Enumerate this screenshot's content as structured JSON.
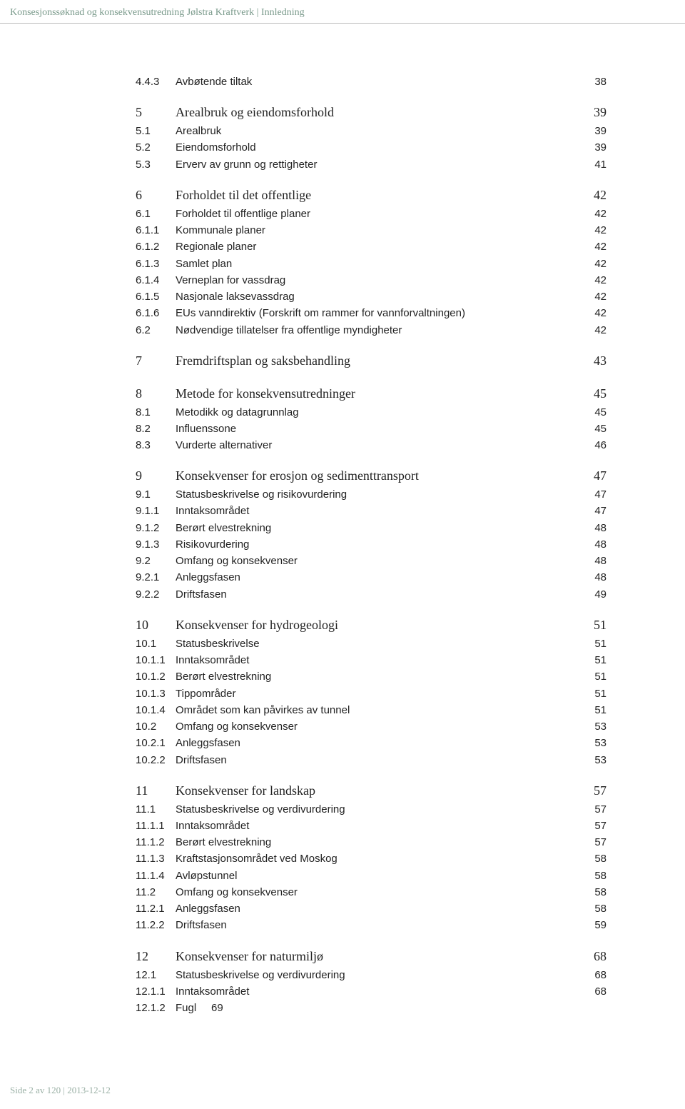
{
  "header": {
    "title_left": "Konsesjonssøknad og konsekvensutredning Jølstra Kraftverk",
    "separator": "|",
    "title_right": "Innledning"
  },
  "colors": {
    "header_text": "#7a9a8b",
    "rule": "#bbbbbb",
    "body_text": "#222222",
    "footer_text": "#9ab0a5",
    "background": "#ffffff"
  },
  "toc": [
    {
      "level": 2,
      "num": "4.4.3",
      "title": "Avbøtende tiltak",
      "page": "38"
    },
    {
      "level": 1,
      "num": "5",
      "title": "Arealbruk og eiendomsforhold",
      "page": "39"
    },
    {
      "level": 2,
      "num": "5.1",
      "title": "Arealbruk",
      "page": "39"
    },
    {
      "level": 2,
      "num": "5.2",
      "title": "Eiendomsforhold",
      "page": "39"
    },
    {
      "level": 2,
      "num": "5.3",
      "title": "Erverv av grunn og rettigheter",
      "page": "41"
    },
    {
      "level": 1,
      "num": "6",
      "title": "Forholdet til det offentlige",
      "page": "42"
    },
    {
      "level": 2,
      "num": "6.1",
      "title": "Forholdet til offentlige planer",
      "page": "42"
    },
    {
      "level": 2,
      "num": "6.1.1",
      "title": "Kommunale planer",
      "page": "42"
    },
    {
      "level": 2,
      "num": "6.1.2",
      "title": "Regionale planer",
      "page": "42"
    },
    {
      "level": 2,
      "num": "6.1.3",
      "title": "Samlet plan",
      "page": "42"
    },
    {
      "level": 2,
      "num": "6.1.4",
      "title": "Verneplan for vassdrag",
      "page": "42"
    },
    {
      "level": 2,
      "num": "6.1.5",
      "title": "Nasjonale laksevassdrag",
      "page": "42"
    },
    {
      "level": 2,
      "num": "6.1.6",
      "title": "EUs vanndirektiv (Forskrift om rammer for vannforvaltningen)",
      "page": "42"
    },
    {
      "level": 2,
      "num": "6.2",
      "title": "Nødvendige tillatelser fra offentlige myndigheter",
      "page": "42"
    },
    {
      "level": 1,
      "num": "7",
      "title": "Fremdriftsplan og saksbehandling",
      "page": "43"
    },
    {
      "level": 1,
      "num": "8",
      "title": "Metode for konsekvensutredninger",
      "page": "45"
    },
    {
      "level": 2,
      "num": "8.1",
      "title": "Metodikk og datagrunnlag",
      "page": "45"
    },
    {
      "level": 2,
      "num": "8.2",
      "title": "Influenssone",
      "page": "45"
    },
    {
      "level": 2,
      "num": "8.3",
      "title": "Vurderte alternativer",
      "page": "46"
    },
    {
      "level": 1,
      "num": "9",
      "title": "Konsekvenser for erosjon og sedimenttransport",
      "page": "47"
    },
    {
      "level": 2,
      "num": "9.1",
      "title": "Statusbeskrivelse og risikovurdering",
      "page": "47"
    },
    {
      "level": 2,
      "num": "9.1.1",
      "title": "Inntaksområdet",
      "page": "47"
    },
    {
      "level": 2,
      "num": "9.1.2",
      "title": "Berørt elvestrekning",
      "page": "48"
    },
    {
      "level": 2,
      "num": "9.1.3",
      "title": "Risikovurdering",
      "page": "48"
    },
    {
      "level": 2,
      "num": "9.2",
      "title": "Omfang og konsekvenser",
      "page": "48"
    },
    {
      "level": 2,
      "num": "9.2.1",
      "title": "Anleggsfasen",
      "page": "48"
    },
    {
      "level": 2,
      "num": "9.2.2",
      "title": "Driftsfasen",
      "page": "49"
    },
    {
      "level": 1,
      "num": "10",
      "title": "Konsekvenser for hydrogeologi",
      "page": "51"
    },
    {
      "level": 2,
      "num": "10.1",
      "title": "Statusbeskrivelse",
      "page": "51"
    },
    {
      "level": 2,
      "num": "10.1.1",
      "title": "Inntaksområdet",
      "page": "51"
    },
    {
      "level": 2,
      "num": "10.1.2",
      "title": "Berørt elvestrekning",
      "page": "51"
    },
    {
      "level": 2,
      "num": "10.1.3",
      "title": "Tippområder",
      "page": "51"
    },
    {
      "level": 2,
      "num": "10.1.4",
      "title": "Området som kan påvirkes av tunnel",
      "page": "51"
    },
    {
      "level": 2,
      "num": "10.2",
      "title": "Omfang og konsekvenser",
      "page": "53"
    },
    {
      "level": 2,
      "num": "10.2.1",
      "title": "Anleggsfasen",
      "page": "53"
    },
    {
      "level": 2,
      "num": "10.2.2",
      "title": "Driftsfasen",
      "page": "53"
    },
    {
      "level": 1,
      "num": "11",
      "title": "Konsekvenser for landskap",
      "page": "57"
    },
    {
      "level": 2,
      "num": "11.1",
      "title": "Statusbeskrivelse og verdivurdering",
      "page": "57"
    },
    {
      "level": 2,
      "num": "11.1.1",
      "title": "Inntaksområdet",
      "page": "57"
    },
    {
      "level": 2,
      "num": "11.1.2",
      "title": "Berørt elvestrekning",
      "page": "57"
    },
    {
      "level": 2,
      "num": "11.1.3",
      "title": "Kraftstasjonsområdet ved Moskog",
      "page": "58"
    },
    {
      "level": 2,
      "num": "11.1.4",
      "title": "Avløpstunnel",
      "page": "58"
    },
    {
      "level": 2,
      "num": "11.2",
      "title": "Omfang og konsekvenser",
      "page": "58"
    },
    {
      "level": 2,
      "num": "11.2.1",
      "title": "Anleggsfasen",
      "page": "58"
    },
    {
      "level": 2,
      "num": "11.2.2",
      "title": "Driftsfasen",
      "page": "59"
    },
    {
      "level": 1,
      "num": "12",
      "title": "Konsekvenser for naturmiljø",
      "page": "68"
    },
    {
      "level": 2,
      "num": "12.1",
      "title": "Statusbeskrivelse og verdivurdering",
      "page": "68"
    },
    {
      "level": 2,
      "num": "12.1.1",
      "title": "Inntaksområdet",
      "page": "68"
    },
    {
      "level": 2,
      "num": "12.1.2",
      "title": "Fugl     69",
      "page": ""
    }
  ],
  "footer": {
    "left_prefix": "Side",
    "page_current": "2",
    "page_sep": "av",
    "page_total": "120",
    "separator": "|",
    "date": "2013-12-12"
  }
}
